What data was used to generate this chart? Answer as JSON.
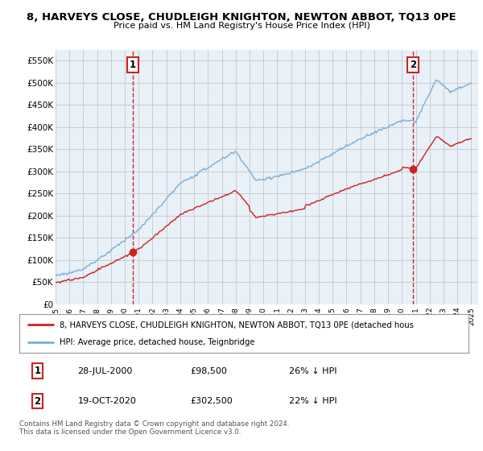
{
  "title": "8, HARVEYS CLOSE, CHUDLEIGH KNIGHTON, NEWTON ABBOT, TQ13 0PE",
  "subtitle": "Price paid vs. HM Land Registry's House Price Index (HPI)",
  "ylim": [
    0,
    575000
  ],
  "yticks": [
    0,
    50000,
    100000,
    150000,
    200000,
    250000,
    300000,
    350000,
    400000,
    450000,
    500000,
    550000
  ],
  "ytick_labels": [
    "£0",
    "£50K",
    "£100K",
    "£150K",
    "£200K",
    "£250K",
    "£300K",
    "£350K",
    "£400K",
    "£450K",
    "£500K",
    "£550K"
  ],
  "xlim_start": 1995.0,
  "xlim_end": 2025.5,
  "xtick_years": [
    1995,
    1996,
    1997,
    1998,
    1999,
    2000,
    2001,
    2002,
    2003,
    2004,
    2005,
    2006,
    2007,
    2008,
    2009,
    2010,
    2011,
    2012,
    2013,
    2014,
    2015,
    2016,
    2017,
    2018,
    2019,
    2020,
    2021,
    2022,
    2023,
    2024,
    2025
  ],
  "hpi_color": "#7bafd4",
  "price_color": "#cc2222",
  "chart_bg": "#e8f0f8",
  "vline_color": "#cc0000",
  "bg_color": "#ffffff",
  "grid_color": "#c8c8c8",
  "sale1_x": 2000.57,
  "sale1_y": 98500,
  "sale1_label": "1",
  "sale2_x": 2020.79,
  "sale2_y": 302500,
  "sale2_label": "2",
  "legend_line1": "8, HARVEYS CLOSE, CHUDLEIGH KNIGHTON, NEWTON ABBOT, TQ13 0PE (detached hous",
  "legend_line2": "HPI: Average price, detached house, Teignbridge",
  "table_row1": [
    "1",
    "28-JUL-2000",
    "£98,500",
    "26% ↓ HPI"
  ],
  "table_row2": [
    "2",
    "19-OCT-2020",
    "£302,500",
    "22% ↓ HPI"
  ],
  "footnote": "Contains HM Land Registry data © Crown copyright and database right 2024.\nThis data is licensed under the Open Government Licence v3.0."
}
